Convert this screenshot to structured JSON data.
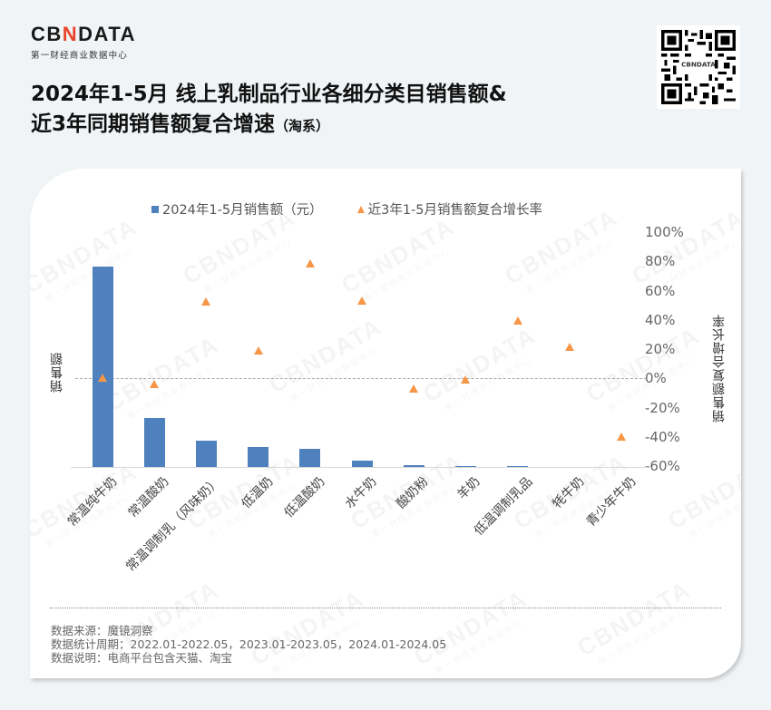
{
  "header": {
    "logo": {
      "pre": "CB",
      "accent": "N",
      "post": "DATA",
      "subtitle": "第一财经商业数据中心"
    },
    "title_line1": "2024年1-5月 线上乳制品行业各细分类目销售额&",
    "title_line2": "近3年同期销售额复合增速",
    "title_suffix": "（淘系）",
    "qr_label": "CBNDATA"
  },
  "watermark": {
    "text": "CBNDATA",
    "sub": "第一财经商业数据中心"
  },
  "chart_data": {
    "type": "bar+scatter",
    "title": "2024年1-5月 线上乳制品行业各细分类目销售额&近3年同期销售额复合增速（淘系）",
    "categories": [
      "常温纯牛奶",
      "常温酸奶",
      "常温调制乳（风味奶）",
      "低温奶",
      "低温酸奶",
      "水牛奶",
      "酸奶粉",
      "羊奶",
      "低温调制乳品",
      "牦牛奶",
      "青少年牛奶"
    ],
    "series": [
      {
        "name": "2024年1-5月销售额（元）",
        "type": "bar",
        "axis": "left",
        "color": "#4e81bd",
        "values": [
          100,
          24.4,
          13.1,
          10.0,
          9.0,
          3.2,
          0.9,
          0.5,
          0.5,
          0.1,
          0.1
        ],
        "unit": "relative (left axis unlabeled)"
      },
      {
        "name": "近3年1-5月销售额复合增长率",
        "type": "scatter",
        "marker": "triangle",
        "axis": "right",
        "color": "#f79646",
        "values": [
          0,
          -4,
          52,
          19,
          78,
          53,
          -7,
          -1,
          39,
          21,
          -40
        ],
        "unit": "%"
      }
    ],
    "xlabel": "",
    "ylabel_left": "销售额",
    "ylabel_right": "销售额复合增长率",
    "y_right_ticks": [
      "100%",
      "80%",
      "60%",
      "40%",
      "20%",
      "0%",
      "-20%",
      "-40%",
      "-60%"
    ],
    "y_right_range": [
      -60,
      100
    ],
    "reference_line": {
      "value": 0,
      "style": "dashed"
    },
    "legend_position": "top",
    "grid": false
  },
  "legend": {
    "bar_label": "2024年1-5月销售额（元）",
    "tri_label": "近3年1-5月销售额复合增长率"
  },
  "footer": {
    "source": "数据来源：魔镜洞察",
    "period": "数据统计周期：2022.01-2022.05，2023.01-2023.05，2024.01-2024.05",
    "note": "数据说明：电商平台包含天猫、淘宝"
  }
}
